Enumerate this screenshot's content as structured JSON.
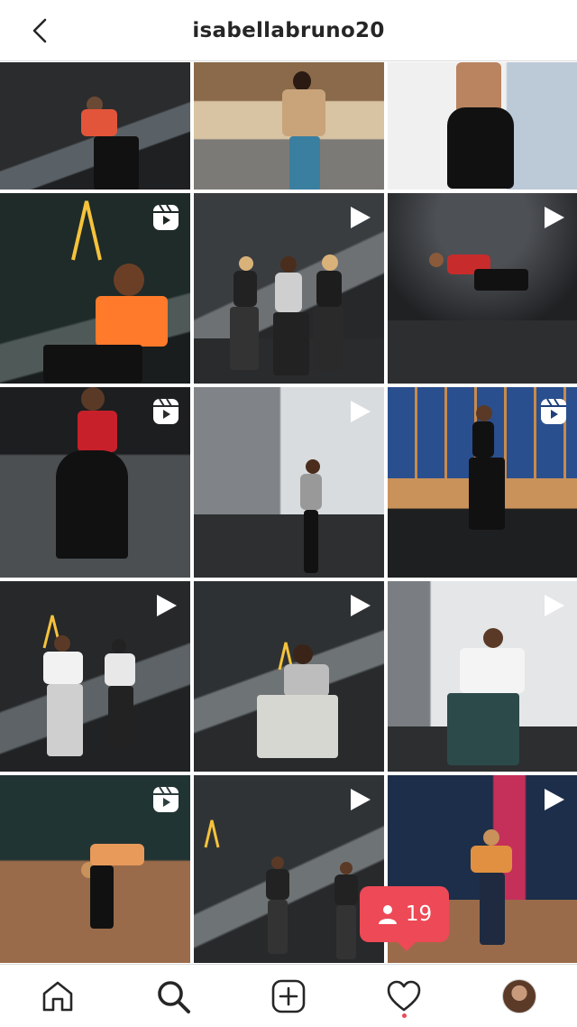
{
  "header": {
    "username": "isabellabruno20",
    "back_icon": "chevron-left-icon"
  },
  "notification": {
    "count": "19",
    "icon": "person-icon",
    "color": "#ed4956"
  },
  "posts": [
    {
      "badge": null
    },
    {
      "badge": null
    },
    {
      "badge": null
    },
    {
      "badge": "reel"
    },
    {
      "badge": "play"
    },
    {
      "badge": "play"
    },
    {
      "badge": "reel"
    },
    {
      "badge": "play"
    },
    {
      "badge": "reel"
    },
    {
      "badge": "play"
    },
    {
      "badge": "play"
    },
    {
      "badge": "play"
    },
    {
      "badge": "reel"
    },
    {
      "badge": "play"
    },
    {
      "badge": "play"
    }
  ],
  "nav": {
    "items": [
      "home-icon",
      "search-icon",
      "create-icon",
      "activity-icon",
      "profile-avatar"
    ],
    "activity_has_dot": true
  }
}
